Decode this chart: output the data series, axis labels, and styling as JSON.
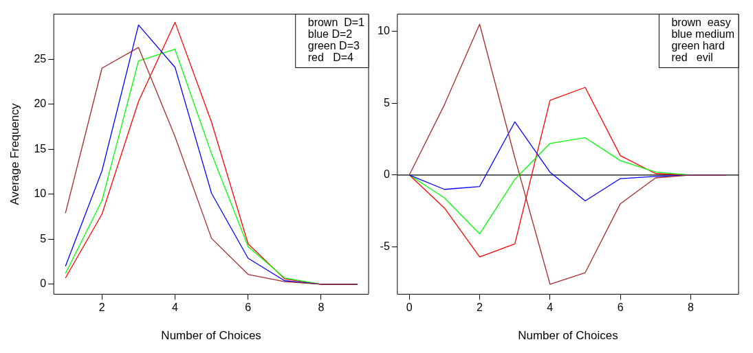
{
  "chart_data": [
    {
      "type": "line",
      "xlabel": "Number of Choices",
      "ylabel": "Average Frequency",
      "x": [
        1,
        2,
        3,
        4,
        5,
        6,
        7,
        8,
        9
      ],
      "series": [
        {
          "color": "#a52a2a",
          "values": [
            7.9,
            24.0,
            26.3,
            16.4,
            5.1,
            1.1,
            0.3,
            0,
            0
          ]
        },
        {
          "color": "#0000ff",
          "values": [
            2.0,
            12.6,
            28.8,
            24.1,
            10.1,
            2.9,
            0.4,
            0,
            0
          ]
        },
        {
          "color": "#00ff00",
          "values": [
            1.2,
            9.3,
            24.8,
            26.1,
            14.5,
            4.2,
            0.7,
            0,
            0
          ]
        },
        {
          "color": "#ff0000",
          "values": [
            0.7,
            7.8,
            20.3,
            29.1,
            18.0,
            4.5,
            0.6,
            0,
            0
          ]
        }
      ],
      "annotations": [
        "brown  D=1",
        "blue D=2",
        "green D=3",
        "red   D=4"
      ],
      "xlim": [
        0.68,
        9.3
      ],
      "xticks": [
        2,
        4,
        6,
        8
      ],
      "ylim": [
        -1.1,
        30
      ],
      "yticks": [
        0,
        5,
        10,
        15,
        20,
        25
      ],
      "grid": false,
      "marker": "none",
      "line_style": "solid"
    },
    {
      "type": "line",
      "xlabel": "Number of Choices",
      "x": [
        0,
        1,
        2,
        3,
        4,
        5,
        6,
        7,
        8,
        9
      ],
      "series": [
        {
          "color": "#a52a2a",
          "values": [
            0,
            4.9,
            10.5,
            1.2,
            -7.6,
            -6.8,
            -2.0,
            -0.2,
            0,
            0
          ]
        },
        {
          "color": "#0000ff",
          "values": [
            0,
            -1.0,
            -0.8,
            3.7,
            0.2,
            -1.8,
            -0.25,
            -0.1,
            0,
            0
          ]
        },
        {
          "color": "#00ff00",
          "values": [
            0,
            -1.6,
            -4.1,
            -0.3,
            2.2,
            2.6,
            1.0,
            0.2,
            0,
            0
          ]
        },
        {
          "color": "#ff0000",
          "values": [
            0,
            -2.3,
            -5.7,
            -4.8,
            5.2,
            6.1,
            1.35,
            0.1,
            0,
            0
          ]
        }
      ],
      "annotations": [
        "brown  easy",
        "blue medium",
        "green hard",
        "red   evil"
      ],
      "xlim": [
        -0.34,
        9.36
      ],
      "xticks": [
        0,
        2,
        4,
        6,
        8
      ],
      "ylim": [
        -8.3,
        11.2
      ],
      "yticks": [
        -5,
        0,
        5,
        10
      ],
      "ref_lines": [
        {
          "axis": "y",
          "value": 0,
          "color": "#000000"
        }
      ],
      "grid": false,
      "marker": "none",
      "line_style": "solid"
    }
  ]
}
